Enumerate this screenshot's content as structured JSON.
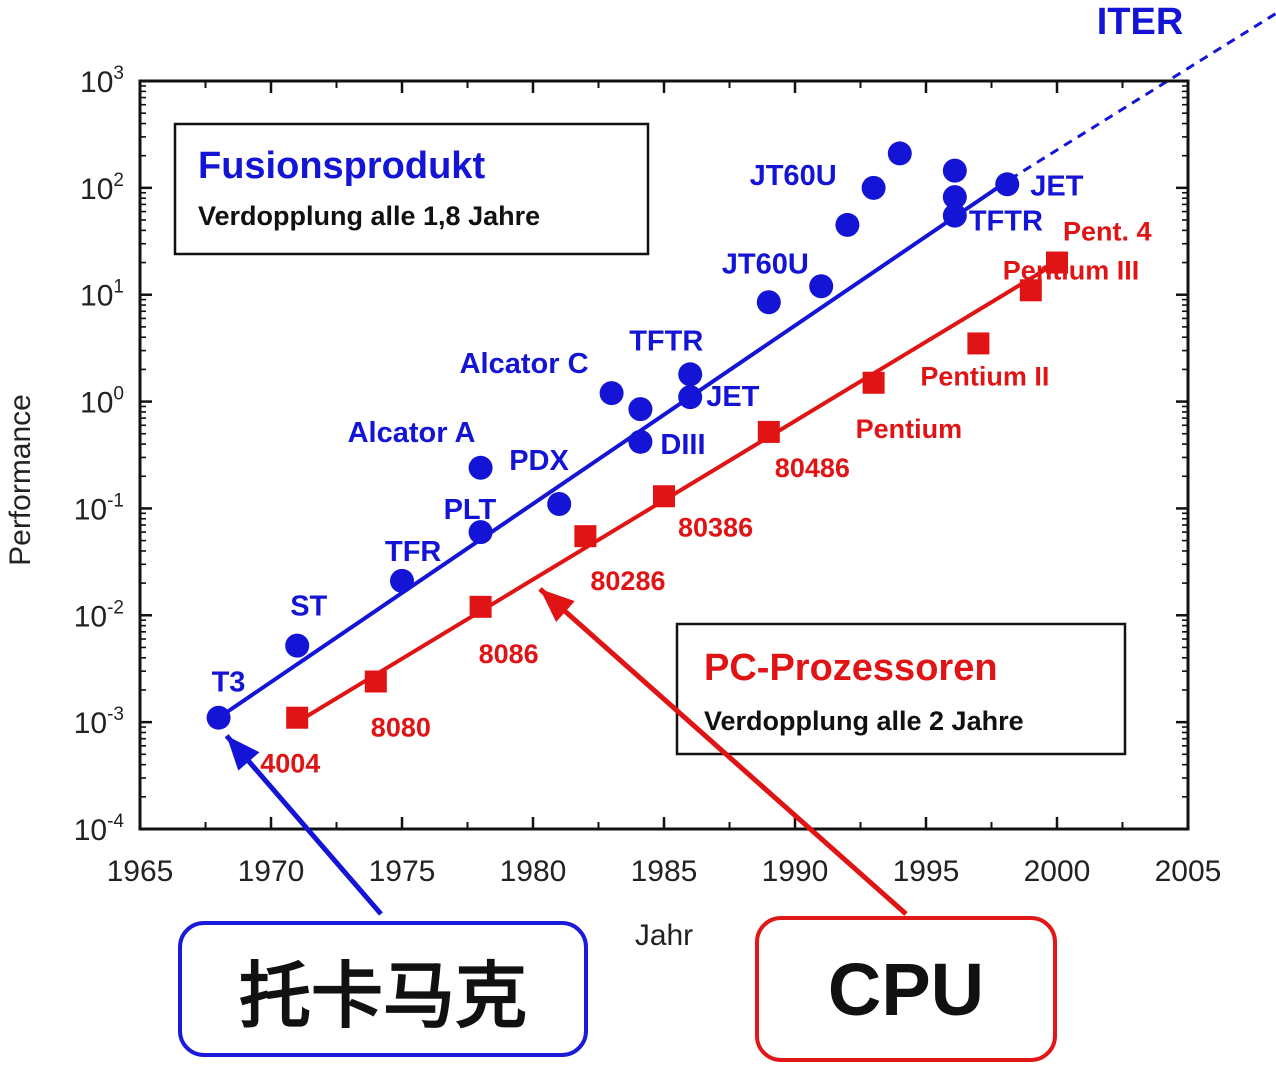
{
  "colors": {
    "fusion": "#1414d6",
    "cpu": "#e01414",
    "frame": "#111111"
  },
  "chart_data": {
    "type": "scatter",
    "title": "",
    "xlabel": "Jahr",
    "ylabel": "Performance",
    "xlim": [
      1965,
      2005
    ],
    "ylim_log10": [
      -4,
      3
    ],
    "y_scale": "log",
    "x_ticks": [
      "1965",
      "1970",
      "1975",
      "1980",
      "1985",
      "1990",
      "1995",
      "2000",
      "2005"
    ],
    "y_ticks": [
      {
        "base": "10",
        "exp": "3"
      },
      {
        "base": "10",
        "exp": "2"
      },
      {
        "base": "10",
        "exp": "1"
      },
      {
        "base": "10",
        "exp": "0"
      },
      {
        "base": "10",
        "exp": "-1"
      },
      {
        "base": "10",
        "exp": "-2"
      },
      {
        "base": "10",
        "exp": "-3"
      },
      {
        "base": "10",
        "exp": "-4"
      }
    ],
    "series": [
      {
        "marker": "circle",
        "points": [
          {
            "x": 1968,
            "y": 0.0011,
            "label": "T3"
          },
          {
            "x": 1971,
            "y": 0.0052,
            "label": "ST"
          },
          {
            "x": 1975,
            "y": 0.021,
            "label": "TFR"
          },
          {
            "x": 1978,
            "y": 0.06,
            "label": "PLT"
          },
          {
            "x": 1978,
            "y": 0.24,
            "label": "Alcator A"
          },
          {
            "x": 1981,
            "y": 0.11,
            "label": "PDX"
          },
          {
            "x": 1983,
            "y": 1.2,
            "label": "Alcator C"
          },
          {
            "x": 1984.1,
            "y": 0.85
          },
          {
            "x": 1984.1,
            "y": 0.42,
            "label": "DIII"
          },
          {
            "x": 1986,
            "y": 1.8,
            "label": "TFTR"
          },
          {
            "x": 1986,
            "y": 1.1,
            "label": "JET"
          },
          {
            "x": 1989,
            "y": 8.5,
            "label": "JT60U"
          },
          {
            "x": 1991,
            "y": 12
          },
          {
            "x": 1992,
            "y": 45
          },
          {
            "x": 1993,
            "y": 100,
            "label": "JT60U"
          },
          {
            "x": 1994,
            "y": 210
          },
          {
            "x": 1996.1,
            "y": 145
          },
          {
            "x": 1996.1,
            "y": 82
          },
          {
            "x": 1996.1,
            "y": 55,
            "label": "TFTR"
          },
          {
            "x": 1998.1,
            "y": 108,
            "label": "JET"
          }
        ],
        "trend": {
          "x": [
            1968,
            1998.2
          ],
          "y": [
            0.0011,
            120
          ]
        },
        "extrapolation": {
          "x": [
            1998.2,
            2005
          ],
          "y": [
            120,
            1500
          ],
          "label": "ITER"
        },
        "note_title": "Fusionsprodukt",
        "note_text": "Verdopplung alle 1,8 Jahre"
      },
      {
        "marker": "square",
        "points": [
          {
            "x": 1971,
            "y": 0.0011,
            "label": "4004"
          },
          {
            "x": 1974,
            "y": 0.0024,
            "label": "8080"
          },
          {
            "x": 1978,
            "y": 0.012,
            "label": "8086"
          },
          {
            "x": 1982,
            "y": 0.055,
            "label": "80286"
          },
          {
            "x": 1985,
            "y": 0.13,
            "label": "80386"
          },
          {
            "x": 1989,
            "y": 0.52,
            "label": "80486"
          },
          {
            "x": 1993,
            "y": 1.5,
            "label": "Pentium"
          },
          {
            "x": 1997,
            "y": 3.5,
            "label": "Pentium II"
          },
          {
            "x": 1999,
            "y": 11,
            "label": "Pentium III"
          },
          {
            "x": 2000,
            "y": 20,
            "label": "Pent. 4"
          }
        ],
        "trend": {
          "x": [
            1971,
            2000
          ],
          "y": [
            0.001,
            20
          ]
        },
        "note_title": "PC-Prozessoren",
        "note_text": "Verdopplung alle 2 Jahre"
      }
    ]
  },
  "callouts": {
    "left": "托卡马克",
    "right": "CPU"
  }
}
